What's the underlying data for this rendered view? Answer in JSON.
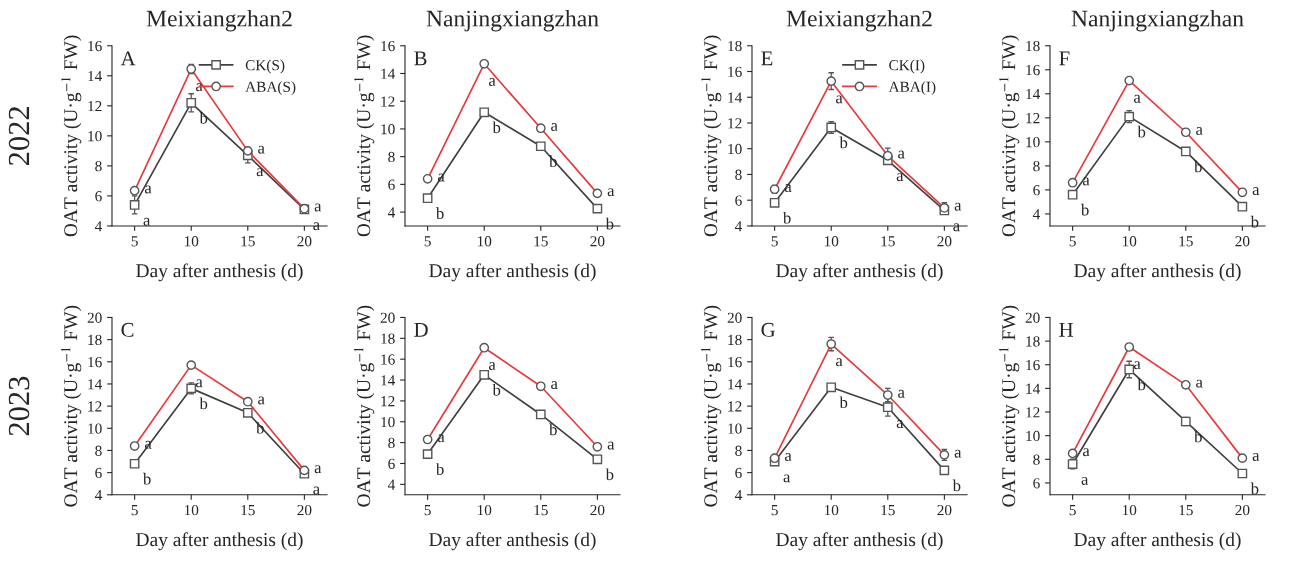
{
  "chart_data": [
    {
      "type": "line",
      "title": "Meixiangzhan2",
      "xlabel": "Day after anthesis (d)",
      "ylabel": "OAT activity (U·g$^{−1}$ FW)",
      "x": [
        5,
        10,
        15,
        20
      ],
      "xlim": [
        3,
        22
      ],
      "xticks": [
        5,
        10,
        15,
        20
      ],
      "ylim": [
        4,
        16
      ],
      "yticks": [
        4,
        6,
        8,
        10,
        12,
        14,
        16
      ],
      "grid": false,
      "legend": "top right",
      "annotations": [
        "A",
        "2022",
        {
          "text": "a",
          "x": 5,
          "y": 5.4
        },
        {
          "text": "b",
          "x": 10,
          "y": 12.2
        },
        {
          "text": "a",
          "x": 15,
          "y": 8.7
        },
        {
          "text": "a",
          "x": 20,
          "y": 5.1
        },
        {
          "text": "a",
          "x": 5,
          "y": 6.35
        },
        {
          "text": "a",
          "x": 10,
          "y": 14.45
        },
        {
          "text": "a",
          "x": 15,
          "y": 9.0
        },
        {
          "text": "a",
          "x": 20,
          "y": 5.15
        }
      ],
      "series": [
        {
          "name": "CK(S)",
          "color": "#404040",
          "marker": "square",
          "values": [
            5.4,
            12.2,
            8.7,
            5.1
          ],
          "errors": [
            0.6,
            0.6,
            0.5,
            0.1
          ]
        },
        {
          "name": "ABA(S)",
          "color": "#e8393c",
          "marker": "circle",
          "values": [
            6.35,
            14.45,
            9.0,
            5.15
          ],
          "errors": [
            0.15,
            0.3,
            0.15,
            0.1
          ]
        }
      ]
    },
    {
      "type": "line",
      "title": "Nanjingxiangzhan",
      "xlabel": "Day after anthesis (d)",
      "ylabel": "OAT activity (U·g$^{−1}$ FW)",
      "x": [
        5,
        10,
        15,
        20
      ],
      "xlim": [
        3,
        22
      ],
      "xticks": [
        5,
        10,
        15,
        20
      ],
      "ylim": [
        3,
        16
      ],
      "yticks": [
        4,
        6,
        8,
        10,
        12,
        14,
        16
      ],
      "grid": false,
      "annotations": [
        "B",
        {
          "text": "b",
          "x": 5,
          "y": 5.0
        },
        {
          "text": "b",
          "x": 10,
          "y": 11.2
        },
        {
          "text": "b",
          "x": 15,
          "y": 8.75
        },
        {
          "text": "b",
          "x": 20,
          "y": 4.25
        },
        {
          "text": "a",
          "x": 5,
          "y": 6.4
        },
        {
          "text": "a",
          "x": 10,
          "y": 14.7
        },
        {
          "text": "a",
          "x": 15,
          "y": 10.05
        },
        {
          "text": "a",
          "x": 20,
          "y": 5.35
        }
      ],
      "series": [
        {
          "color": "#404040",
          "marker": "square",
          "values": [
            5.0,
            11.2,
            8.75,
            4.25
          ],
          "errors": [
            0.1,
            0.15,
            0.1,
            0.1
          ]
        },
        {
          "color": "#e8393c",
          "marker": "circle",
          "values": [
            6.4,
            14.7,
            10.05,
            5.35
          ],
          "errors": [
            0.1,
            0.1,
            0.15,
            0.1
          ]
        }
      ]
    },
    {
      "type": "line",
      "title": "Meixiangzhan2",
      "xlabel": "Day after anthesis (d)",
      "ylabel": "OAT activity (U·g$^{−1}$ FW)",
      "x": [
        5,
        10,
        15,
        20
      ],
      "xlim": [
        3,
        22
      ],
      "xticks": [
        5,
        10,
        15,
        20
      ],
      "ylim": [
        4,
        18
      ],
      "yticks": [
        4,
        6,
        8,
        10,
        12,
        14,
        16,
        18
      ],
      "grid": false,
      "legend": "top right",
      "annotations": [
        "E",
        {
          "text": "b",
          "x": 5,
          "y": 5.8
        },
        {
          "text": "b",
          "x": 10,
          "y": 11.65
        },
        {
          "text": "a",
          "x": 15,
          "y": 9.1
        },
        {
          "text": "a",
          "x": 20,
          "y": 5.2
        },
        {
          "text": "a",
          "x": 5,
          "y": 6.85
        },
        {
          "text": "a",
          "x": 10,
          "y": 15.25
        },
        {
          "text": "a",
          "x": 15,
          "y": 9.45
        },
        {
          "text": "a",
          "x": 20,
          "y": 5.4
        }
      ],
      "series": [
        {
          "name": "CK(I)",
          "color": "#404040",
          "marker": "square",
          "values": [
            5.8,
            11.65,
            9.1,
            5.2
          ],
          "errors": [
            0.2,
            0.45,
            0.3,
            0.2
          ]
        },
        {
          "name": "ABA(I)",
          "color": "#e8393c",
          "marker": "circle",
          "values": [
            6.85,
            15.25,
            9.45,
            5.4
          ],
          "errors": [
            0.3,
            0.65,
            0.6,
            0.4
          ]
        }
      ]
    },
    {
      "type": "line",
      "title": "Nanjingxiangzhan",
      "xlabel": "Day after anthesis (d)",
      "ylabel": "OAT activity (U·g$^{−1}$ FW)",
      "x": [
        5,
        10,
        15,
        20
      ],
      "xlim": [
        3,
        22
      ],
      "xticks": [
        5,
        10,
        15,
        20
      ],
      "ylim": [
        3,
        18
      ],
      "yticks": [
        4,
        6,
        8,
        10,
        12,
        14,
        16,
        18
      ],
      "grid": false,
      "annotations": [
        "F",
        {
          "text": "b",
          "x": 5,
          "y": 5.6
        },
        {
          "text": "b",
          "x": 10,
          "y": 12.1
        },
        {
          "text": "b",
          "x": 15,
          "y": 9.2
        },
        {
          "text": "b",
          "x": 20,
          "y": 4.6
        },
        {
          "text": "a",
          "x": 5,
          "y": 6.6
        },
        {
          "text": "a",
          "x": 10,
          "y": 15.1
        },
        {
          "text": "a",
          "x": 15,
          "y": 10.8
        },
        {
          "text": "a",
          "x": 20,
          "y": 5.8
        }
      ],
      "series": [
        {
          "color": "#404040",
          "marker": "square",
          "values": [
            5.6,
            12.1,
            9.2,
            4.6
          ],
          "errors": [
            0.3,
            0.5,
            0.25,
            0.1
          ]
        },
        {
          "color": "#e8393c",
          "marker": "circle",
          "values": [
            6.6,
            15.1,
            10.8,
            5.8
          ],
          "errors": [
            0.15,
            0.15,
            0.1,
            0.1
          ]
        }
      ]
    },
    {
      "type": "line",
      "xlabel": "Day after anthesis (d)",
      "ylabel": "OAT activity (U·g$^{−1}$ FW)",
      "x": [
        5,
        10,
        15,
        20
      ],
      "xlim": [
        3,
        22
      ],
      "xticks": [
        5,
        10,
        15,
        20
      ],
      "ylim": [
        4,
        20
      ],
      "yticks": [
        4,
        6,
        8,
        10,
        12,
        14,
        16,
        18,
        20
      ],
      "grid": false,
      "annotations": [
        "C",
        "2023",
        {
          "text": "b",
          "x": 5,
          "y": 6.8
        },
        {
          "text": "b",
          "x": 10,
          "y": 13.6
        },
        {
          "text": "b",
          "x": 15,
          "y": 11.4
        },
        {
          "text": "a",
          "x": 20,
          "y": 5.9
        },
        {
          "text": "a",
          "x": 5,
          "y": 8.4
        },
        {
          "text": "a",
          "x": 10,
          "y": 15.7
        },
        {
          "text": "a",
          "x": 15,
          "y": 12.4
        },
        {
          "text": "a",
          "x": 20,
          "y": 6.2
        }
      ],
      "series": [
        {
          "color": "#404040",
          "marker": "square",
          "values": [
            6.8,
            13.6,
            11.4,
            5.9
          ],
          "errors": [
            0.1,
            0.5,
            0.2,
            0.1
          ]
        },
        {
          "color": "#e8393c",
          "marker": "circle",
          "values": [
            8.4,
            15.7,
            12.4,
            6.2
          ],
          "errors": [
            0.1,
            0.2,
            0.15,
            0.1
          ]
        }
      ]
    },
    {
      "type": "line",
      "xlabel": "Day after anthesis (d)",
      "ylabel": "OAT activity (U·g$^{−1}$ FW)",
      "x": [
        5,
        10,
        15,
        20
      ],
      "xlim": [
        3,
        22
      ],
      "xticks": [
        5,
        10,
        15,
        20
      ],
      "ylim": [
        3,
        20
      ],
      "yticks": [
        4,
        6,
        8,
        10,
        12,
        14,
        16,
        18,
        20
      ],
      "grid": false,
      "annotations": [
        "D",
        {
          "text": "b",
          "x": 5,
          "y": 6.9
        },
        {
          "text": "b",
          "x": 10,
          "y": 14.5
        },
        {
          "text": "b",
          "x": 15,
          "y": 10.7
        },
        {
          "text": "b",
          "x": 20,
          "y": 6.4
        },
        {
          "text": "a",
          "x": 5,
          "y": 8.3
        },
        {
          "text": "a",
          "x": 10,
          "y": 17.1
        },
        {
          "text": "a",
          "x": 15,
          "y": 13.4
        },
        {
          "text": "a",
          "x": 20,
          "y": 7.6
        }
      ],
      "series": [
        {
          "color": "#404040",
          "marker": "square",
          "values": [
            6.9,
            14.5,
            10.7,
            6.4
          ],
          "errors": [
            0.1,
            0.2,
            0.15,
            0.1
          ]
        },
        {
          "color": "#e8393c",
          "marker": "circle",
          "values": [
            8.3,
            17.1,
            13.4,
            7.6
          ],
          "errors": [
            0.1,
            0.1,
            0.2,
            0.1
          ]
        }
      ]
    },
    {
      "type": "line",
      "xlabel": "Day after anthesis (d)",
      "ylabel": "OAT activity (U·g$^{−1}$ FW)",
      "x": [
        5,
        10,
        15,
        20
      ],
      "xlim": [
        3,
        22
      ],
      "xticks": [
        5,
        10,
        15,
        20
      ],
      "ylim": [
        4,
        20
      ],
      "yticks": [
        4,
        6,
        8,
        10,
        12,
        14,
        16,
        18,
        20
      ],
      "grid": false,
      "annotations": [
        "G",
        {
          "text": "a",
          "x": 5,
          "y": 7.0
        },
        {
          "text": "b",
          "x": 10,
          "y": 13.7
        },
        {
          "text": "a",
          "x": 15,
          "y": 11.9
        },
        {
          "text": "b",
          "x": 20,
          "y": 6.2
        },
        {
          "text": "a",
          "x": 5,
          "y": 7.3
        },
        {
          "text": "a",
          "x": 10,
          "y": 17.6
        },
        {
          "text": "a",
          "x": 15,
          "y": 13.0
        },
        {
          "text": "a",
          "x": 20,
          "y": 7.6
        }
      ],
      "series": [
        {
          "color": "#404040",
          "marker": "square",
          "values": [
            7.0,
            13.7,
            11.9,
            6.2
          ],
          "errors": [
            0.2,
            0.2,
            0.8,
            0.3
          ]
        },
        {
          "color": "#e8393c",
          "marker": "circle",
          "values": [
            7.3,
            17.6,
            13.0,
            7.6
          ],
          "errors": [
            0.1,
            0.6,
            0.6,
            0.5
          ]
        }
      ]
    },
    {
      "type": "line",
      "xlabel": "Day after anthesis (d)",
      "ylabel": "OAT activity (U·g$^{−1}$ FW)",
      "x": [
        5,
        10,
        15,
        20
      ],
      "xlim": [
        3,
        22
      ],
      "xticks": [
        5,
        10,
        15,
        20
      ],
      "ylim": [
        5,
        20
      ],
      "yticks": [
        6,
        8,
        10,
        12,
        14,
        16,
        18,
        20
      ],
      "grid": false,
      "annotations": [
        "H",
        {
          "text": "a",
          "x": 5,
          "y": 7.6
        },
        {
          "text": "b",
          "x": 10,
          "y": 15.6
        },
        {
          "text": "b",
          "x": 15,
          "y": 11.2
        },
        {
          "text": "b",
          "x": 20,
          "y": 6.8
        },
        {
          "text": "a",
          "x": 5,
          "y": 8.5
        },
        {
          "text": "a",
          "x": 10,
          "y": 17.5
        },
        {
          "text": "a",
          "x": 15,
          "y": 14.3
        },
        {
          "text": "a",
          "x": 20,
          "y": 8.1
        }
      ],
      "series": [
        {
          "color": "#404040",
          "marker": "square",
          "values": [
            7.6,
            15.6,
            11.2,
            6.8
          ],
          "errors": [
            0.4,
            0.7,
            0.35,
            0.15
          ]
        },
        {
          "color": "#e8393c",
          "marker": "circle",
          "values": [
            8.5,
            17.5,
            14.3,
            8.1
          ],
          "errors": [
            0.15,
            0.15,
            0.25,
            0.1
          ]
        }
      ]
    }
  ]
}
